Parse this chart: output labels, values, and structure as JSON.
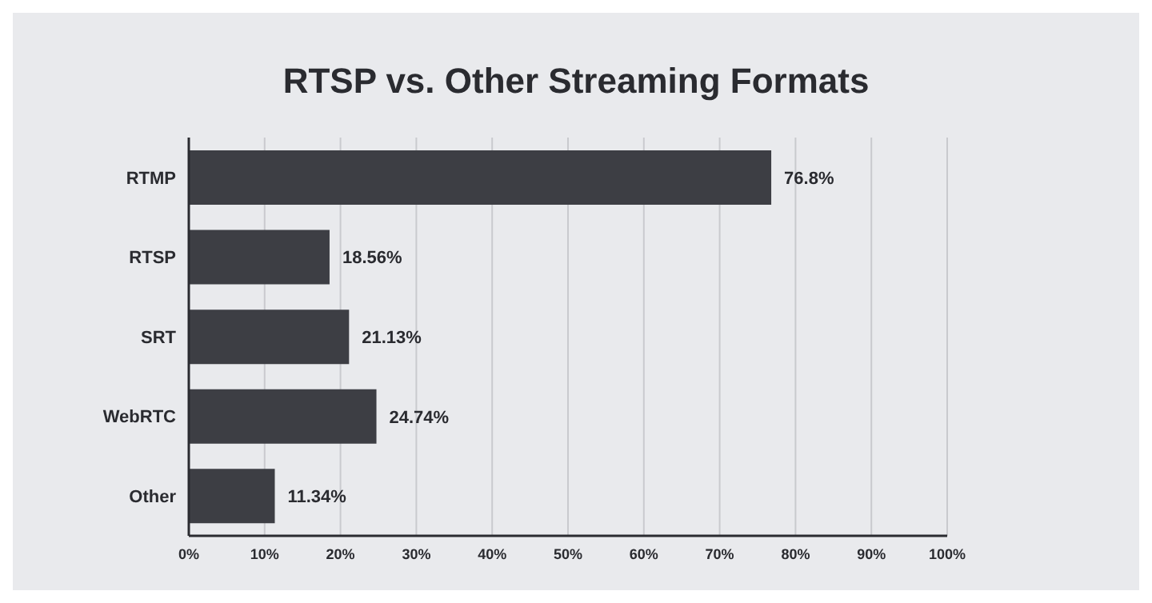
{
  "chart_data": {
    "type": "bar",
    "orientation": "horizontal",
    "title": "RTSP vs. Other Streaming Formats",
    "categories": [
      "RTMP",
      "RTSP",
      "SRT",
      "WebRTC",
      "Other"
    ],
    "values": [
      76.8,
      18.56,
      21.13,
      24.74,
      11.34
    ],
    "value_labels": [
      "76.8%",
      "18.56%",
      "21.13%",
      "24.74%",
      "11.34%"
    ],
    "color": "#3d3e44",
    "xlim": [
      0,
      100
    ],
    "xticks": [
      {
        "value": 0,
        "label": "0%"
      },
      {
        "value": 10,
        "label": "10%"
      },
      {
        "value": 20,
        "label": "20%"
      },
      {
        "value": 30,
        "label": "30%"
      },
      {
        "value": 40,
        "label": "40%"
      },
      {
        "value": 50,
        "label": "50%"
      },
      {
        "value": 60,
        "label": "60%"
      },
      {
        "value": 70,
        "label": "70%"
      },
      {
        "value": 80,
        "label": "80%"
      },
      {
        "value": 90,
        "label": "90%"
      },
      {
        "value": 100,
        "label": "100%"
      }
    ],
    "grid": "x"
  }
}
